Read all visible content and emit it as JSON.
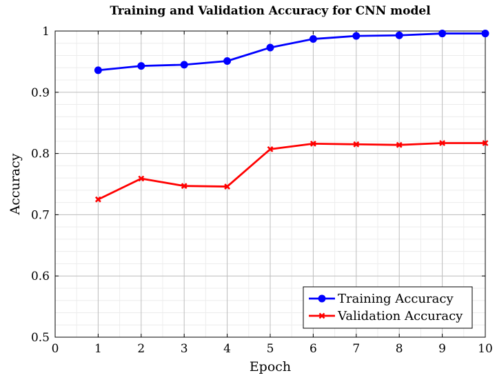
{
  "chart_data": {
    "type": "line",
    "title": "Training and Validation Accuracy for CNN model",
    "xlabel": "Epoch",
    "ylabel": "Accuracy",
    "xlim": [
      0,
      10
    ],
    "ylim": [
      0.5,
      1
    ],
    "x_ticks": [
      0,
      1,
      2,
      3,
      4,
      5,
      6,
      7,
      8,
      9,
      10
    ],
    "y_ticks": [
      0.5,
      0.6,
      0.7,
      0.8,
      0.9,
      1
    ],
    "grid": true,
    "minor_grid": true,
    "legend_position": "bottom-right",
    "x": [
      1,
      2,
      3,
      4,
      5,
      6,
      7,
      8,
      9,
      10
    ],
    "series": [
      {
        "name": "Training Accuracy",
        "color": "#0000ff",
        "marker": "circle",
        "values": [
          0.936,
          0.943,
          0.945,
          0.951,
          0.973,
          0.987,
          0.992,
          0.993,
          0.996,
          0.996
        ]
      },
      {
        "name": "Validation Accuracy",
        "color": "#ff0000",
        "marker": "x",
        "values": [
          0.725,
          0.759,
          0.747,
          0.746,
          0.807,
          0.816,
          0.815,
          0.814,
          0.817,
          0.817
        ]
      }
    ]
  }
}
